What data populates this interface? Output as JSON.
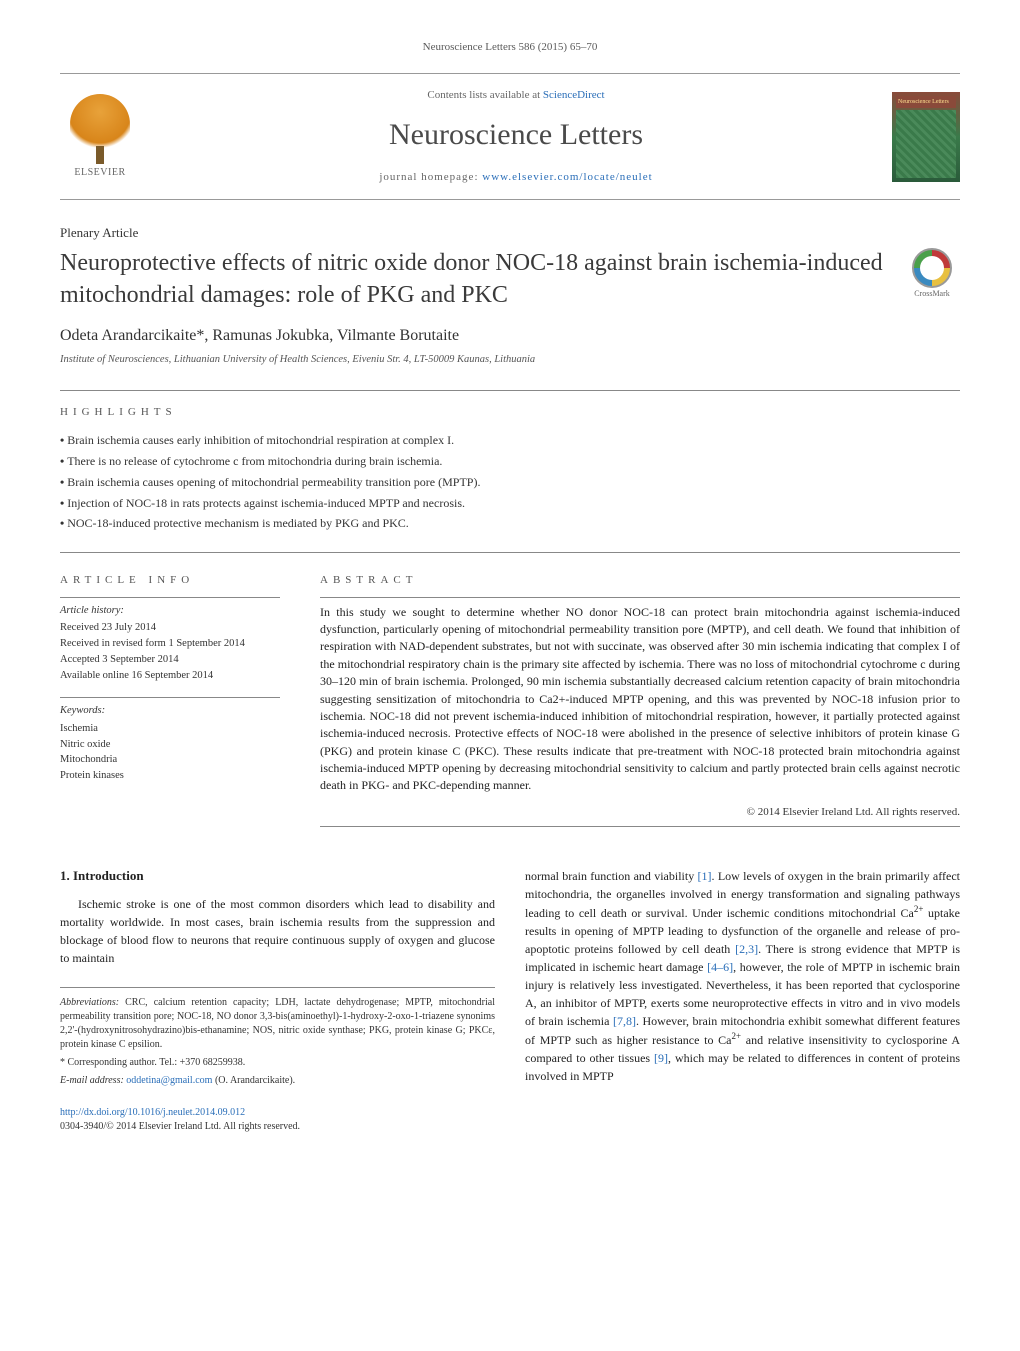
{
  "citation": "Neuroscience Letters 586 (2015) 65–70",
  "header": {
    "contents_prefix": "Contents lists available at ",
    "contents_link": "ScienceDirect",
    "journal": "Neuroscience Letters",
    "homepage_prefix": "journal homepage: ",
    "homepage_link": "www.elsevier.com/locate/neulet",
    "publisher": "ELSEVIER",
    "cover_label": "Neuroscience Letters"
  },
  "article_type": "Plenary Article",
  "title": "Neuroprotective effects of nitric oxide donor NOC-18 against brain ischemia-induced mitochondrial damages: role of PKG and PKC",
  "crossmark_label": "CrossMark",
  "authors": "Odeta Arandarcikaite*, Ramunas Jokubka, Vilmante Borutaite",
  "affiliation": "Institute of Neurosciences, Lithuanian University of Health Sciences, Eiveniu Str. 4, LT-50009 Kaunas, Lithuania",
  "highlights_label": "HIGHLIGHTS",
  "highlights": [
    "Brain ischemia causes early inhibition of mitochondrial respiration at complex I.",
    "There is no release of cytochrome c from mitochondria during brain ischemia.",
    "Brain ischemia causes opening of mitochondrial permeability transition pore (MPTP).",
    "Injection of NOC-18 in rats protects against ischemia-induced MPTP and necrosis.",
    "NOC-18-induced protective mechanism is mediated by PKG and PKC."
  ],
  "article_info_label": "ARTICLE INFO",
  "abstract_label": "ABSTRACT",
  "history": {
    "heading": "Article history:",
    "lines": [
      "Received 23 July 2014",
      "Received in revised form 1 September 2014",
      "Accepted 3 September 2014",
      "Available online 16 September 2014"
    ]
  },
  "keywords": {
    "heading": "Keywords:",
    "items": [
      "Ischemia",
      "Nitric oxide",
      "Mitochondria",
      "Protein kinases"
    ]
  },
  "abstract": "In this study we sought to determine whether NO donor NOC-18 can protect brain mitochondria against ischemia-induced dysfunction, particularly opening of mitochondrial permeability transition pore (MPTP), and cell death. We found that inhibition of respiration with NAD-dependent substrates, but not with succinate, was observed after 30 min ischemia indicating that complex I of the mitochondrial respiratory chain is the primary site affected by ischemia. There was no loss of mitochondrial cytochrome c during 30–120 min of brain ischemia. Prolonged, 90 min ischemia substantially decreased calcium retention capacity of brain mitochondria suggesting sensitization of mitochondria to Ca2+-induced MPTP opening, and this was prevented by NOC-18 infusion prior to ischemia. NOC-18 did not prevent ischemia-induced inhibition of mitochondrial respiration, however, it partially protected against ischemia-induced necrosis. Protective effects of NOC-18 were abolished in the presence of selective inhibitors of protein kinase G (PKG) and protein kinase C (PKC). These results indicate that pre-treatment with NOC-18 protected brain mitochondria against ischemia-induced MPTP opening by decreasing mitochondrial sensitivity to calcium and partly protected brain cells against necrotic death in PKG- and PKC-depending manner.",
  "abstract_copyright": "© 2014 Elsevier Ireland Ltd. All rights reserved.",
  "intro_heading": "1. Introduction",
  "intro_p1": "Ischemic stroke is one of the most common disorders which lead to disability and mortality worldwide. In most cases, brain ischemia results from the suppression and blockage of blood flow to neurons that require continuous supply of oxygen and glucose to maintain",
  "intro_p2_a": "normal brain function and viability ",
  "intro_p2_ref1": "[1]",
  "intro_p2_b": ". Low levels of oxygen in the brain primarily affect mitochondria, the organelles involved in energy transformation and signaling pathways leading to cell death or survival. Under ischemic conditions mitochondrial Ca",
  "intro_p2_c": " uptake results in opening of MPTP leading to dysfunction of the organelle and release of pro-apoptotic proteins followed by cell death ",
  "intro_p2_ref2": "[2,3]",
  "intro_p2_d": ". There is strong evidence that MPTP is implicated in ischemic heart damage ",
  "intro_p2_ref3": "[4–6]",
  "intro_p2_e": ", however, the role of MPTP in ischemic brain injury is relatively less investigated. Nevertheless, it has been reported that cyclosporine A, an inhibitor of MPTP, exerts some neuroprotective effects in vitro and in vivo models of brain ischemia ",
  "intro_p2_ref4": "[7,8]",
  "intro_p2_f": ". However, brain mitochondria exhibit somewhat different features of MPTP such as higher resistance to Ca",
  "intro_p2_g": " and relative insensitivity to cyclosporine A compared to other tissues ",
  "intro_p2_ref5": "[9]",
  "intro_p2_h": ", which may be related to differences in content of proteins involved in MPTP",
  "abbrev_label": "Abbreviations:",
  "abbrev_text": " CRC, calcium retention capacity; LDH, lactate dehydrogenase; MPTP, mitochondrial permeability transition pore; NOC-18, NO donor 3,3-bis(aminoethyl)-1-hydroxy-2-oxo-1-triazene synonims 2,2'-(hydroxynitrosohydrazino)bis-ethanamine; NOS, nitric oxide synthase; PKG, protein kinase G; PKCε, protein kinase C epsilion.",
  "corresponding_label": "* Corresponding author. Tel.: +370 68259938.",
  "email_label": "E-mail address: ",
  "email": "oddetina@gmail.com",
  "email_author": " (O. Arandarcikaite).",
  "doi": "http://dx.doi.org/10.1016/j.neulet.2014.09.012",
  "issn": "0304-3940/© 2014 Elsevier Ireland Ltd. All rights reserved.",
  "colors": {
    "link": "#2a6eb8",
    "text": "#1a1a1a",
    "muted": "#5a5a5a",
    "rule": "#888888"
  }
}
